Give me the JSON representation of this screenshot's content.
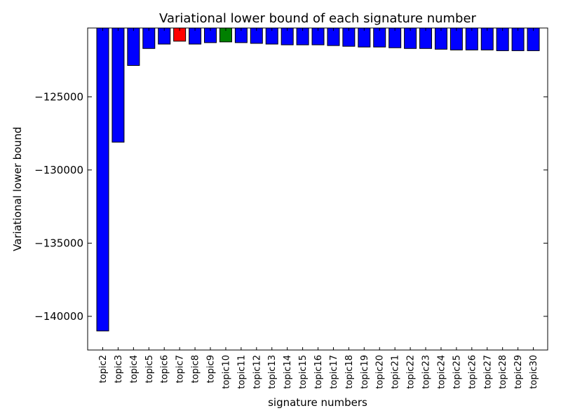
{
  "chart_data": {
    "type": "bar",
    "title": "Variational lower bound of each signature number",
    "xlabel": "signature numbers",
    "ylabel": "Variational lower bound",
    "ylim": [
      -142300,
      -120300
    ],
    "yticks": [
      -125000,
      -130000,
      -135000,
      -140000
    ],
    "ytick_labels": [
      "−125000",
      "−130000",
      "−135000",
      "−140000"
    ],
    "grid": false,
    "categories": [
      "topic2",
      "topic3",
      "topic4",
      "topic5",
      "topic6",
      "topic7",
      "topic8",
      "topic9",
      "topic10",
      "topic11",
      "topic12",
      "topic13",
      "topic14",
      "topic15",
      "topic16",
      "topic17",
      "topic18",
      "topic19",
      "topic20",
      "topic21",
      "topic22",
      "topic23",
      "topic24",
      "topic25",
      "topic26",
      "topic27",
      "topic28",
      "topic29",
      "topic30"
    ],
    "values": [
      -141000,
      -128100,
      -122860,
      -121700,
      -121400,
      -121200,
      -121400,
      -121300,
      -121250,
      -121300,
      -121350,
      -121400,
      -121450,
      -121450,
      -121450,
      -121500,
      -121550,
      -121600,
      -121600,
      -121650,
      -121700,
      -121700,
      -121750,
      -121800,
      -121800,
      -121800,
      -121850,
      -121850,
      -121850
    ],
    "bar_colors": [
      "#0000ff",
      "#0000ff",
      "#0000ff",
      "#0000ff",
      "#0000ff",
      "#ff0000",
      "#0000ff",
      "#0000ff",
      "#008000",
      "#0000ff",
      "#0000ff",
      "#0000ff",
      "#0000ff",
      "#0000ff",
      "#0000ff",
      "#0000ff",
      "#0000ff",
      "#0000ff",
      "#0000ff",
      "#0000ff",
      "#0000ff",
      "#0000ff",
      "#0000ff",
      "#0000ff",
      "#0000ff",
      "#0000ff",
      "#0000ff",
      "#0000ff",
      "#0000ff"
    ]
  }
}
